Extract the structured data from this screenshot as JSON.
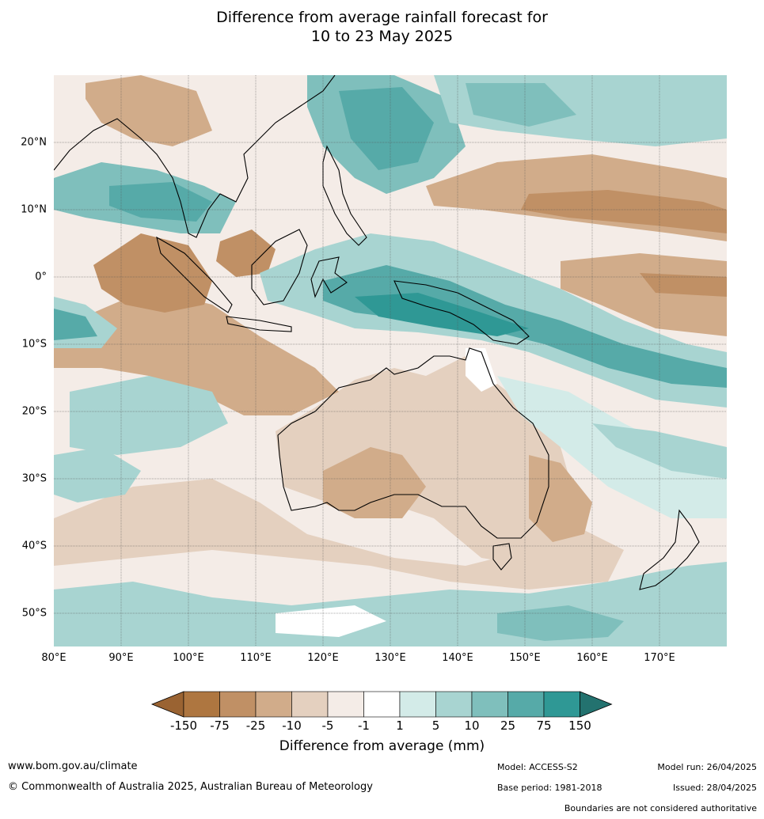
{
  "title": {
    "line1": "Difference from average rainfall forecast for",
    "line2": "10 to 23 May 2025"
  },
  "map": {
    "lon_labels": [
      "80°E",
      "90°E",
      "100°E",
      "110°E",
      "120°E",
      "130°E",
      "140°E",
      "150°E",
      "160°E",
      "170°E"
    ],
    "lat_labels": [
      "20°N",
      "10°N",
      "0°",
      "10°S",
      "20°S",
      "30°S",
      "40°S",
      "50°S"
    ],
    "lon_range": [
      80,
      180
    ],
    "lat_range": [
      -55,
      30
    ]
  },
  "legend": {
    "title": "Difference from average (mm)",
    "tick_labels": [
      "-150",
      "-75",
      "-25",
      "-10",
      "-5",
      "-1",
      "1",
      "5",
      "10",
      "25",
      "75",
      "150"
    ],
    "colors": [
      "#9a6332",
      "#ae7640",
      "#c09065",
      "#d1ac8a",
      "#e4d0bf",
      "#f4ece7",
      "#ffffff",
      "#d3ebe8",
      "#a8d4d1",
      "#7fbfbc",
      "#56aaa8",
      "#2f9895",
      "#23726f"
    ]
  },
  "footer": {
    "website": "www.bom.gov.au/climate",
    "copyright": "© Commonwealth of Australia 2025, Australian Bureau of Meteorology",
    "model": "Model: ACCESS-S2",
    "base_period": "Base period: 1981-2018",
    "model_run": "Model run: 26/04/2025",
    "issued": "Issued: 28/04/2025",
    "disclaimer": "Boundaries are not considered authoritative"
  }
}
